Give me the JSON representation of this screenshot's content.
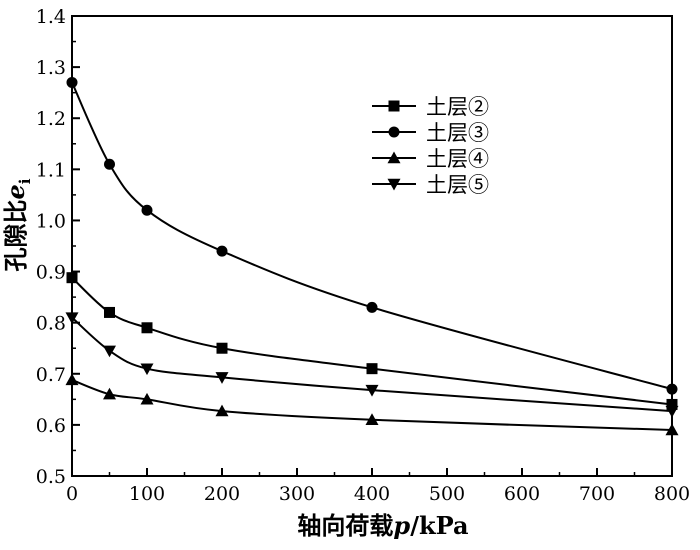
{
  "chart_data": {
    "type": "line",
    "title": "",
    "xlabel_main": "轴向荷载",
    "xlabel_var": "p",
    "xlabel_unit": "/kPa",
    "ylabel_main": "孔隙比",
    "ylabel_var": "e",
    "ylabel_sub": "i",
    "xlim": [
      0,
      800
    ],
    "ylim": [
      0.5,
      1.4
    ],
    "xticks": [
      "0",
      "100",
      "200",
      "300",
      "400",
      "500",
      "600",
      "700",
      "800"
    ],
    "yticks": [
      "0.5",
      "0.6",
      "0.7",
      "0.8",
      "0.9",
      "1.0",
      "1.1",
      "1.2",
      "1.3",
      "1.4"
    ],
    "grid": false,
    "legend_position": "top-right",
    "series": [
      {
        "name": "土层②",
        "marker": "square",
        "x": [
          0,
          50,
          100,
          200,
          400,
          800
        ],
        "y": [
          0.888,
          0.82,
          0.79,
          0.75,
          0.71,
          0.64
        ]
      },
      {
        "name": "土层③",
        "marker": "circle",
        "x": [
          0,
          50,
          100,
          200,
          400,
          800
        ],
        "y": [
          1.27,
          1.11,
          1.02,
          0.94,
          0.83,
          0.67
        ]
      },
      {
        "name": "土层④",
        "marker": "triangle-up",
        "x": [
          0,
          50,
          100,
          200,
          400,
          800
        ],
        "y": [
          0.688,
          0.66,
          0.65,
          0.627,
          0.61,
          0.59
        ]
      },
      {
        "name": "土层⑤",
        "marker": "triangle-down",
        "x": [
          0,
          50,
          100,
          200,
          400,
          800
        ],
        "y": [
          0.81,
          0.745,
          0.71,
          0.693,
          0.668,
          0.627
        ]
      }
    ]
  }
}
